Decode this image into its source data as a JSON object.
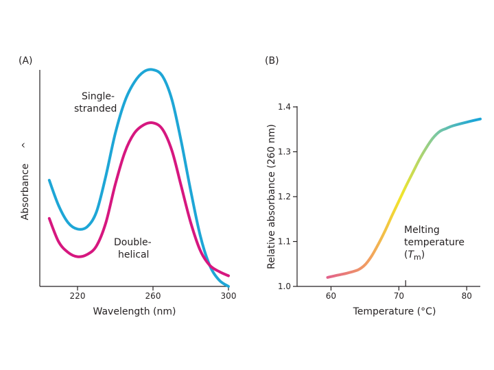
{
  "chart_data": [
    {
      "panel": "(A)",
      "type": "line",
      "xlabel": "Wavelength (nm)",
      "ylabel": "Absorbance",
      "y_marker": "^",
      "xlim": [
        200,
        300
      ],
      "ylim": [
        0,
        1
      ],
      "x_ticks": [
        220,
        260,
        300
      ],
      "x_tick_labels": [
        "220",
        "260",
        "300"
      ],
      "grid": false,
      "series": [
        {
          "name": "Single-stranded",
          "color": "#1ea6d6",
          "x": [
            205,
            210,
            215,
            220,
            225,
            230,
            235,
            240,
            245,
            250,
            255,
            260,
            265,
            270,
            275,
            280,
            285,
            290,
            295,
            300
          ],
          "y": [
            0.5,
            0.38,
            0.3,
            0.27,
            0.28,
            0.35,
            0.52,
            0.72,
            0.87,
            0.96,
            1.01,
            1.02,
            0.99,
            0.88,
            0.68,
            0.45,
            0.24,
            0.1,
            0.03,
            0.0
          ]
        },
        {
          "name": "Double-helical",
          "color": "#d6177f",
          "x": [
            205,
            210,
            215,
            220,
            225,
            230,
            235,
            240,
            245,
            250,
            255,
            260,
            265,
            270,
            275,
            280,
            285,
            290,
            295,
            300
          ],
          "y": [
            0.32,
            0.21,
            0.16,
            0.14,
            0.15,
            0.19,
            0.3,
            0.48,
            0.63,
            0.72,
            0.76,
            0.77,
            0.74,
            0.64,
            0.47,
            0.3,
            0.17,
            0.1,
            0.07,
            0.05
          ]
        }
      ],
      "annotations": [
        {
          "lines": [
            "Single-",
            "stranded"
          ],
          "near": "upper curve, left side"
        },
        {
          "lines": [
            "Double-",
            "helical"
          ],
          "near": "lower curve, lower middle"
        }
      ]
    },
    {
      "panel": "(B)",
      "type": "line",
      "xlabel": "Temperature (°C)",
      "ylabel": "Relative absorbance (260 nm)",
      "xlim": [
        55,
        82
      ],
      "ylim": [
        1.0,
        1.4
      ],
      "x_ticks": [
        60,
        70,
        80
      ],
      "x_tick_labels": [
        "60",
        "70",
        "80"
      ],
      "y_ticks": [
        1.0,
        1.1,
        1.2,
        1.3,
        1.4
      ],
      "y_tick_labels": [
        "1.0",
        "1.1",
        "1.2",
        "1.3",
        "1.4"
      ],
      "x_marker": "71",
      "grid": false,
      "series": [
        {
          "name": "Melting curve",
          "gradient": [
            "#e0598f",
            "#f2a35e",
            "#f2e52a",
            "#7dc8a0",
            "#1ea6d6"
          ],
          "x": [
            59.5,
            61,
            62.5,
            64,
            65,
            66,
            67,
            68,
            69,
            70,
            71,
            72,
            73,
            74,
            75,
            76,
            77,
            78,
            80,
            82
          ],
          "y": [
            1.02,
            1.025,
            1.03,
            1.037,
            1.048,
            1.068,
            1.095,
            1.125,
            1.158,
            1.19,
            1.222,
            1.252,
            1.282,
            1.308,
            1.33,
            1.345,
            1.352,
            1.358,
            1.366,
            1.373
          ]
        }
      ],
      "annotations": [
        {
          "lines": [
            "Melting",
            "temperature"
          ],
          "tm_symbol": "T",
          "tm_subscript": "m"
        }
      ]
    }
  ]
}
